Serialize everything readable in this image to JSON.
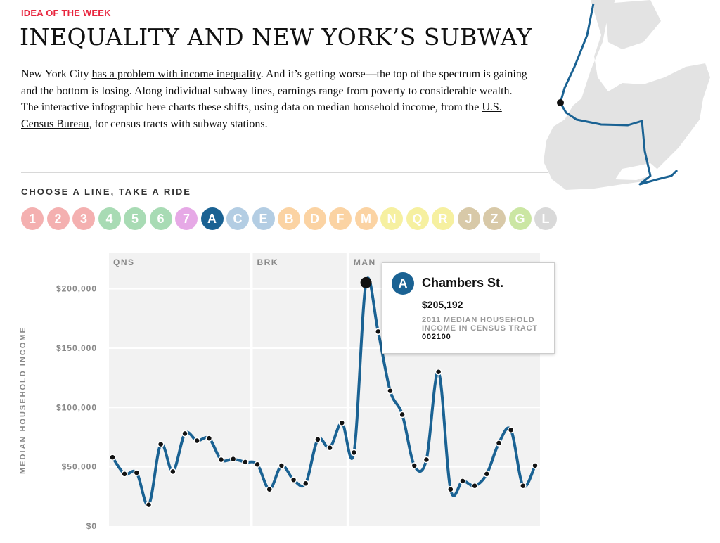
{
  "kicker": "IDEA OF THE WEEK",
  "headline": "INEQUALITY AND NEW YORK’S SUBWAY",
  "intro": {
    "p1": "New York City ",
    "link1": "has a problem with income inequality",
    "p2": ". And it’s getting worse—the top of the spectrum is gaining and the bottom is losing. Along individual subway lines, earnings range from poverty to considerable wealth. The interactive infographic here charts these shifts, using data on median household income, from the ",
    "link2": "U.S. Census Bureau",
    "p3": ", for census tracts with subway stations."
  },
  "chooser_label": "CHOOSE A LINE, TAKE A RIDE",
  "lines": [
    {
      "label": "1",
      "color": "#f4b0b0",
      "active": false
    },
    {
      "label": "2",
      "color": "#f4b0b0",
      "active": false
    },
    {
      "label": "3",
      "color": "#f4b0b0",
      "active": false
    },
    {
      "label": "4",
      "color": "#a8dbb4",
      "active": false
    },
    {
      "label": "5",
      "color": "#a8dbb4",
      "active": false
    },
    {
      "label": "6",
      "color": "#a8dbb4",
      "active": false
    },
    {
      "label": "7",
      "color": "#e6a9e6",
      "active": false
    },
    {
      "label": "A",
      "color": "#1a6293",
      "active": true
    },
    {
      "label": "C",
      "color": "#b3cde3",
      "active": false
    },
    {
      "label": "E",
      "color": "#b3cde3",
      "active": false
    },
    {
      "label": "B",
      "color": "#fbd3a3",
      "active": false
    },
    {
      "label": "D",
      "color": "#fbd3a3",
      "active": false
    },
    {
      "label": "F",
      "color": "#fbd3a3",
      "active": false
    },
    {
      "label": "M",
      "color": "#fbd3a3",
      "active": false
    },
    {
      "label": "N",
      "color": "#f6f0a0",
      "active": false
    },
    {
      "label": "Q",
      "color": "#f6f0a0",
      "active": false
    },
    {
      "label": "R",
      "color": "#f6f0a0",
      "active": false
    },
    {
      "label": "J",
      "color": "#d8c9a8",
      "active": false
    },
    {
      "label": "Z",
      "color": "#d8c9a8",
      "active": false
    },
    {
      "label": "G",
      "color": "#cbe6a3",
      "active": false
    },
    {
      "label": "L",
      "color": "#d9d9d9",
      "active": false
    }
  ],
  "tooltip": {
    "line": "A",
    "station": "Chambers St.",
    "value": "$205,192",
    "desc": "2011 MEDIAN HOUSEHOLD INCOME IN CENSUS TRACT ",
    "tract": "002100"
  },
  "colors": {
    "line": "#1a6293",
    "panel": "#f2f2f2",
    "accent": "#e8253e"
  },
  "chart_data": {
    "type": "line",
    "title": "",
    "xlabel": "",
    "ylabel": "MEDIAN HOUSEHOLD INCOME",
    "ylim": [
      0,
      230000
    ],
    "yticks": [
      0,
      50000,
      100000,
      150000,
      200000
    ],
    "ytick_labels": [
      "$0",
      "$50,000",
      "$100,000",
      "$150,000",
      "$200,000"
    ],
    "boroughs": [
      {
        "label": "QNS",
        "start": 0,
        "end": 12
      },
      {
        "label": "BRK",
        "start": 12,
        "end": 20
      },
      {
        "label": "MAN",
        "start": 20,
        "end": 36
      }
    ],
    "highlight_index": 21,
    "series": [
      {
        "values": [
          58000,
          44000,
          45000,
          18000,
          69000,
          46000,
          78000,
          72000,
          74000,
          56000,
          56500,
          54000,
          52000,
          31000,
          51000,
          39000,
          36000,
          73000,
          66000,
          87000,
          62000,
          205192,
          164000,
          114000,
          94000,
          51000,
          56000,
          130000,
          31000,
          38000,
          34000,
          44000,
          70000,
          81000,
          34000,
          51000
        ]
      }
    ]
  }
}
